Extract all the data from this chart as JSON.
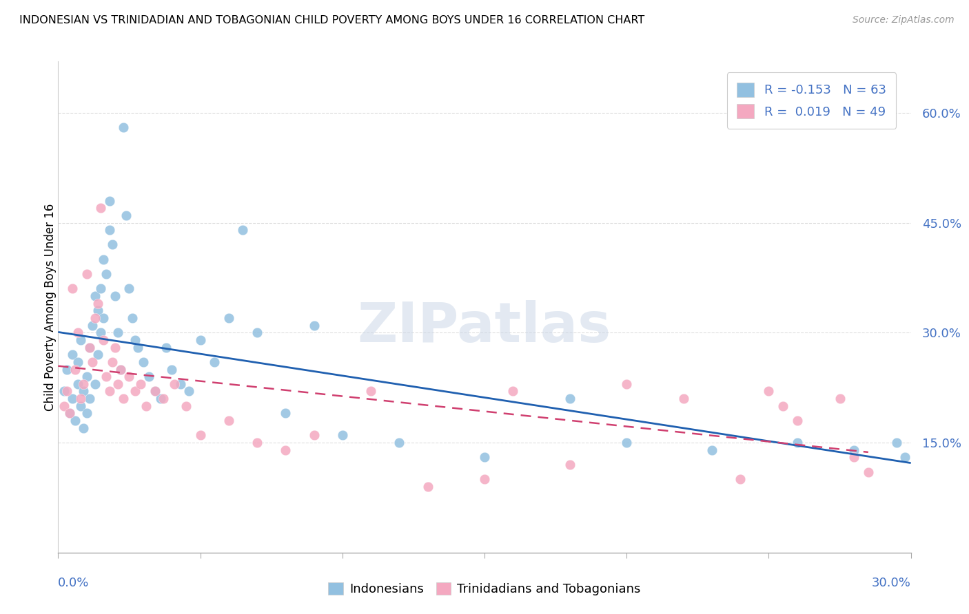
{
  "title": "INDONESIAN VS TRINIDADIAN AND TOBAGONIAN CHILD POVERTY AMONG BOYS UNDER 16 CORRELATION CHART",
  "source": "Source: ZipAtlas.com",
  "ylabel": "Child Poverty Among Boys Under 16",
  "xlim": [
    0.0,
    0.3
  ],
  "ylim": [
    0.0,
    0.67
  ],
  "yticks": [
    0.15,
    0.3,
    0.45,
    0.6
  ],
  "blue_color": "#92c0e0",
  "pink_color": "#f4a8c0",
  "trendline_blue_color": "#2060b0",
  "trendline_pink_color": "#d04070",
  "watermark_text": "ZIPatlas",
  "legend_r1": "R = -0.153",
  "legend_n1": "N = 63",
  "legend_r2": "R =  0.019",
  "legend_n2": "N = 49",
  "label_indonesians": "Indonesians",
  "label_trinidadians": "Trinidadians and Tobagonians",
  "indo_x": [
    0.002,
    0.003,
    0.004,
    0.005,
    0.005,
    0.006,
    0.007,
    0.007,
    0.008,
    0.008,
    0.009,
    0.009,
    0.01,
    0.01,
    0.011,
    0.011,
    0.012,
    0.013,
    0.013,
    0.014,
    0.014,
    0.015,
    0.015,
    0.016,
    0.016,
    0.017,
    0.018,
    0.018,
    0.019,
    0.02,
    0.021,
    0.022,
    0.023,
    0.024,
    0.025,
    0.026,
    0.027,
    0.028,
    0.03,
    0.032,
    0.034,
    0.036,
    0.038,
    0.04,
    0.043,
    0.046,
    0.05,
    0.055,
    0.06,
    0.065,
    0.07,
    0.08,
    0.09,
    0.1,
    0.12,
    0.15,
    0.18,
    0.2,
    0.23,
    0.26,
    0.28,
    0.295,
    0.298
  ],
  "indo_y": [
    0.22,
    0.25,
    0.19,
    0.21,
    0.27,
    0.18,
    0.23,
    0.26,
    0.2,
    0.29,
    0.22,
    0.17,
    0.24,
    0.19,
    0.28,
    0.21,
    0.31,
    0.23,
    0.35,
    0.27,
    0.33,
    0.3,
    0.36,
    0.32,
    0.4,
    0.38,
    0.48,
    0.44,
    0.42,
    0.35,
    0.3,
    0.25,
    0.58,
    0.46,
    0.36,
    0.32,
    0.29,
    0.28,
    0.26,
    0.24,
    0.22,
    0.21,
    0.28,
    0.25,
    0.23,
    0.22,
    0.29,
    0.26,
    0.32,
    0.44,
    0.3,
    0.19,
    0.31,
    0.16,
    0.15,
    0.13,
    0.21,
    0.15,
    0.14,
    0.15,
    0.14,
    0.15,
    0.13
  ],
  "trin_x": [
    0.002,
    0.003,
    0.004,
    0.005,
    0.006,
    0.007,
    0.008,
    0.009,
    0.01,
    0.011,
    0.012,
    0.013,
    0.014,
    0.015,
    0.016,
    0.017,
    0.018,
    0.019,
    0.02,
    0.021,
    0.022,
    0.023,
    0.025,
    0.027,
    0.029,
    0.031,
    0.034,
    0.037,
    0.041,
    0.045,
    0.05,
    0.06,
    0.07,
    0.08,
    0.09,
    0.11,
    0.13,
    0.15,
    0.16,
    0.18,
    0.2,
    0.22,
    0.24,
    0.25,
    0.255,
    0.26,
    0.275,
    0.28,
    0.285
  ],
  "trin_y": [
    0.2,
    0.22,
    0.19,
    0.36,
    0.25,
    0.3,
    0.21,
    0.23,
    0.38,
    0.28,
    0.26,
    0.32,
    0.34,
    0.47,
    0.29,
    0.24,
    0.22,
    0.26,
    0.28,
    0.23,
    0.25,
    0.21,
    0.24,
    0.22,
    0.23,
    0.2,
    0.22,
    0.21,
    0.23,
    0.2,
    0.16,
    0.18,
    0.15,
    0.14,
    0.16,
    0.22,
    0.09,
    0.1,
    0.22,
    0.12,
    0.23,
    0.21,
    0.1,
    0.22,
    0.2,
    0.18,
    0.21,
    0.13,
    0.11
  ]
}
